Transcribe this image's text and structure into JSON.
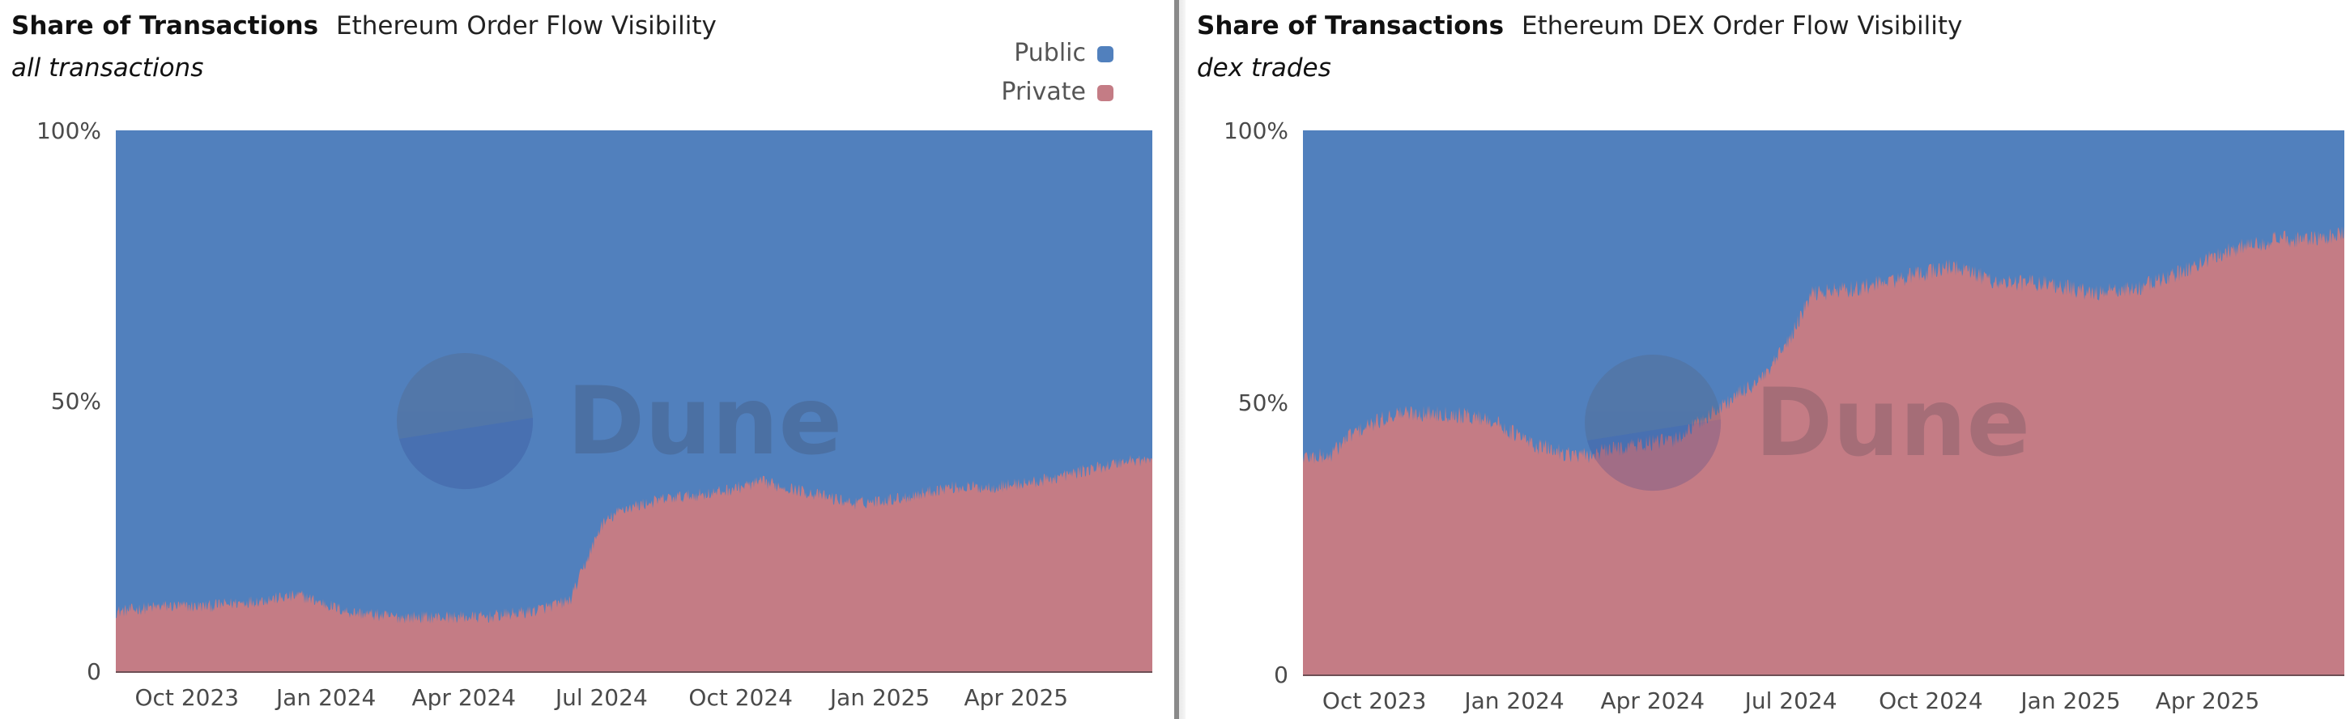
{
  "chart_data": [
    {
      "type": "area",
      "stacked": "percent",
      "title": "Share of Transactions",
      "subtitle_right": "Ethereum Order Flow Visibility",
      "subtitle": "all transactions",
      "ylim": [
        0,
        100
      ],
      "yticks": [
        "0",
        "50%",
        "100%"
      ],
      "xticks": [
        "Oct 2023",
        "Jan 2024",
        "Apr 2024",
        "Jul 2024",
        "Oct 2024",
        "Jan 2025",
        "Apr 2025"
      ],
      "xrange": [
        "2023-08-15",
        "2025-06-30"
      ],
      "legend": {
        "position": "top-right",
        "entries": [
          "Public",
          "Private"
        ]
      },
      "series": [
        {
          "name": "Private",
          "color": "#c47c85",
          "x": [
            "2023-08-15",
            "2023-09-15",
            "2023-10-15",
            "2023-11-15",
            "2023-12-15",
            "2024-01-15",
            "2024-02-15",
            "2024-03-15",
            "2024-04-15",
            "2024-05-15",
            "2024-06-10",
            "2024-07-01",
            "2024-07-15",
            "2024-08-15",
            "2024-09-15",
            "2024-10-15",
            "2024-11-15",
            "2024-12-15",
            "2025-01-15",
            "2025-02-15",
            "2025-03-15",
            "2025-04-15",
            "2025-05-15",
            "2025-06-15",
            "2025-06-30"
          ],
          "values": [
            11,
            12,
            12,
            13,
            14,
            11,
            10,
            10,
            10,
            11,
            13,
            27,
            30,
            32,
            33,
            35,
            33,
            31,
            32,
            34,
            34,
            35,
            37,
            39,
            39
          ]
        },
        {
          "name": "Public",
          "color": "#5180bd",
          "x": [
            "2023-08-15",
            "2023-09-15",
            "2023-10-15",
            "2023-11-15",
            "2023-12-15",
            "2024-01-15",
            "2024-02-15",
            "2024-03-15",
            "2024-04-15",
            "2024-05-15",
            "2024-06-10",
            "2024-07-01",
            "2024-07-15",
            "2024-08-15",
            "2024-09-15",
            "2024-10-15",
            "2024-11-15",
            "2024-12-15",
            "2025-01-15",
            "2025-02-15",
            "2025-03-15",
            "2025-04-15",
            "2025-05-15",
            "2025-06-15",
            "2025-06-30"
          ],
          "values": [
            89,
            88,
            88,
            87,
            86,
            89,
            90,
            90,
            90,
            89,
            87,
            73,
            70,
            68,
            67,
            65,
            67,
            69,
            68,
            66,
            66,
            65,
            63,
            61,
            61
          ]
        }
      ]
    },
    {
      "type": "area",
      "stacked": "percent",
      "title": "Share of Transactions",
      "subtitle_right": "Ethereum DEX Order Flow Visibility",
      "subtitle": "dex trades",
      "ylim": [
        0,
        100
      ],
      "yticks": [
        "0",
        "50%",
        "100%"
      ],
      "xticks": [
        "Oct 2023",
        "Jan 2024",
        "Apr 2024",
        "Jul 2024",
        "Oct 2024",
        "Jan 2025",
        "Apr 2025"
      ],
      "xrange": [
        "2023-08-15",
        "2025-06-30"
      ],
      "series": [
        {
          "name": "Private",
          "color": "#c47c85",
          "x": [
            "2023-08-15",
            "2023-09-01",
            "2023-09-15",
            "2023-10-15",
            "2023-11-15",
            "2023-12-15",
            "2024-01-15",
            "2024-02-15",
            "2024-03-15",
            "2024-04-15",
            "2024-05-15",
            "2024-06-15",
            "2024-07-01",
            "2024-07-15",
            "2024-08-15",
            "2024-09-15",
            "2024-10-15",
            "2024-11-15",
            "2024-12-15",
            "2025-01-15",
            "2025-02-15",
            "2025-03-15",
            "2025-04-15",
            "2025-05-15",
            "2025-06-15",
            "2025-06-30"
          ],
          "values": [
            40,
            40,
            44,
            48,
            48,
            47,
            42,
            40,
            42,
            43,
            49,
            55,
            62,
            70,
            71,
            73,
            75,
            72,
            72,
            70,
            71,
            74,
            78,
            80,
            80,
            81
          ]
        },
        {
          "name": "Public",
          "color": "#5180bd",
          "x": [
            "2023-08-15",
            "2023-09-01",
            "2023-09-15",
            "2023-10-15",
            "2023-11-15",
            "2023-12-15",
            "2024-01-15",
            "2024-02-15",
            "2024-03-15",
            "2024-04-15",
            "2024-05-15",
            "2024-06-15",
            "2024-07-01",
            "2024-07-15",
            "2024-08-15",
            "2024-09-15",
            "2024-10-15",
            "2024-11-15",
            "2024-12-15",
            "2025-01-15",
            "2025-02-15",
            "2025-03-15",
            "2025-04-15",
            "2025-05-15",
            "2025-06-15",
            "2025-06-30"
          ],
          "values": [
            60,
            60,
            56,
            52,
            52,
            53,
            58,
            60,
            58,
            57,
            51,
            45,
            38,
            30,
            29,
            27,
            25,
            28,
            28,
            30,
            29,
            26,
            22,
            20,
            20,
            19
          ]
        }
      ]
    }
  ],
  "watermark": "Dune",
  "colors": {
    "public": "#5180bd",
    "private": "#c47c85"
  }
}
